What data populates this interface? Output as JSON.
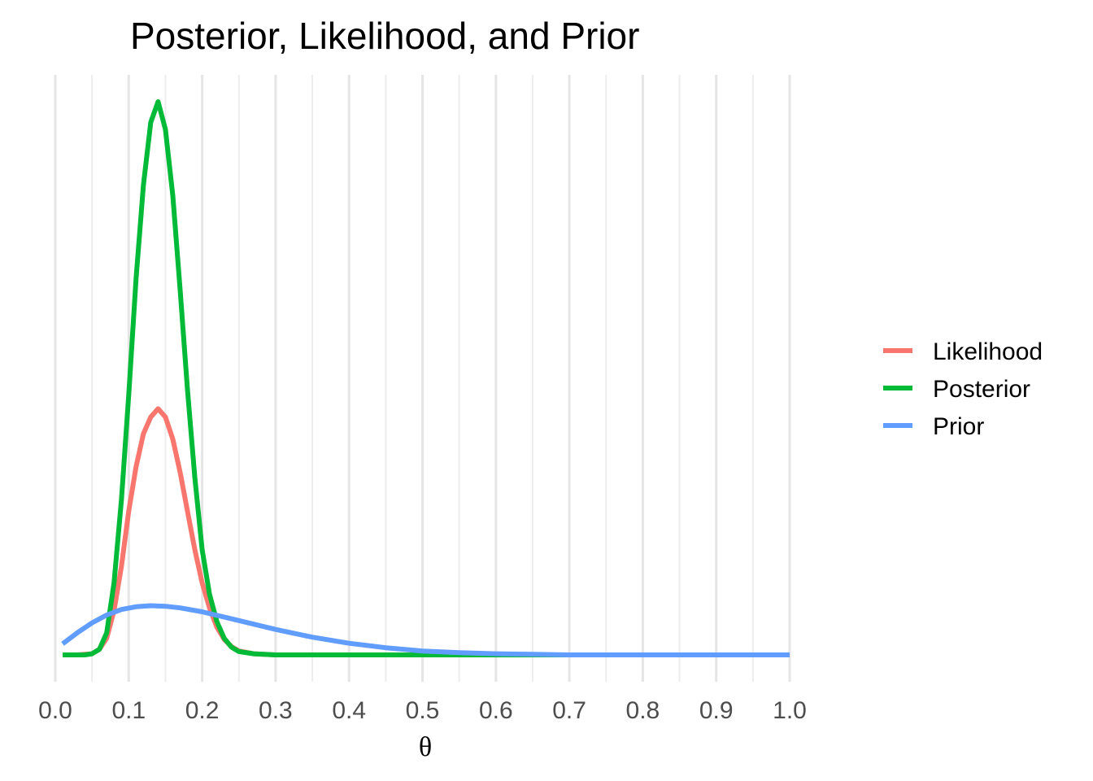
{
  "chart_data": {
    "type": "line",
    "title": "Posterior, Likelihood, and Prior",
    "xlabel": "θ",
    "ylabel": "",
    "xlim": [
      0,
      1
    ],
    "ylim": [
      0,
      1
    ],
    "x_ticks": [
      "0.0",
      "0.1",
      "0.2",
      "0.3",
      "0.4",
      "0.5",
      "0.6",
      "0.7",
      "0.8",
      "0.9",
      "1.0"
    ],
    "y_axis_shown": false,
    "grid": "vertical only",
    "legend_position": "right",
    "series": [
      {
        "name": "Likelihood",
        "color": "#F8766D",
        "points": [
          [
            0.01,
            0
          ],
          [
            0.03,
            0
          ],
          [
            0.05,
            0.002
          ],
          [
            0.06,
            0.01
          ],
          [
            0.07,
            0.03
          ],
          [
            0.08,
            0.08
          ],
          [
            0.09,
            0.16
          ],
          [
            0.1,
            0.26
          ],
          [
            0.11,
            0.34
          ],
          [
            0.12,
            0.4
          ],
          [
            0.13,
            0.43
          ],
          [
            0.14,
            0.445
          ],
          [
            0.15,
            0.43
          ],
          [
            0.16,
            0.39
          ],
          [
            0.17,
            0.33
          ],
          [
            0.18,
            0.26
          ],
          [
            0.19,
            0.19
          ],
          [
            0.2,
            0.13
          ],
          [
            0.21,
            0.085
          ],
          [
            0.22,
            0.05
          ],
          [
            0.23,
            0.028
          ],
          [
            0.24,
            0.015
          ],
          [
            0.25,
            0.007
          ],
          [
            0.27,
            0.002
          ],
          [
            0.3,
            0
          ],
          [
            1.0,
            0
          ]
        ]
      },
      {
        "name": "Posterior",
        "color": "#00BA38",
        "points": [
          [
            0.01,
            0
          ],
          [
            0.04,
            0
          ],
          [
            0.05,
            0.002
          ],
          [
            0.06,
            0.01
          ],
          [
            0.07,
            0.04
          ],
          [
            0.08,
            0.13
          ],
          [
            0.09,
            0.28
          ],
          [
            0.1,
            0.47
          ],
          [
            0.11,
            0.68
          ],
          [
            0.12,
            0.85
          ],
          [
            0.13,
            0.963
          ],
          [
            0.14,
            1.0
          ],
          [
            0.15,
            0.95
          ],
          [
            0.16,
            0.83
          ],
          [
            0.17,
            0.66
          ],
          [
            0.18,
            0.48
          ],
          [
            0.19,
            0.32
          ],
          [
            0.2,
            0.19
          ],
          [
            0.21,
            0.11
          ],
          [
            0.22,
            0.06
          ],
          [
            0.23,
            0.03
          ],
          [
            0.24,
            0.014
          ],
          [
            0.25,
            0.006
          ],
          [
            0.27,
            0.002
          ],
          [
            0.3,
            0
          ],
          [
            1.0,
            0
          ]
        ]
      },
      {
        "name": "Prior",
        "color": "#619CFF",
        "points": [
          [
            0.01,
            0.02
          ],
          [
            0.03,
            0.04
          ],
          [
            0.05,
            0.058
          ],
          [
            0.07,
            0.072
          ],
          [
            0.09,
            0.082
          ],
          [
            0.11,
            0.087
          ],
          [
            0.13,
            0.089
          ],
          [
            0.15,
            0.088
          ],
          [
            0.17,
            0.085
          ],
          [
            0.2,
            0.078
          ],
          [
            0.25,
            0.062
          ],
          [
            0.3,
            0.046
          ],
          [
            0.35,
            0.032
          ],
          [
            0.4,
            0.021
          ],
          [
            0.45,
            0.013
          ],
          [
            0.5,
            0.007
          ],
          [
            0.55,
            0.004
          ],
          [
            0.6,
            0.002
          ],
          [
            0.65,
            0.001
          ],
          [
            0.7,
            0
          ],
          [
            1.0,
            0
          ]
        ]
      }
    ]
  }
}
